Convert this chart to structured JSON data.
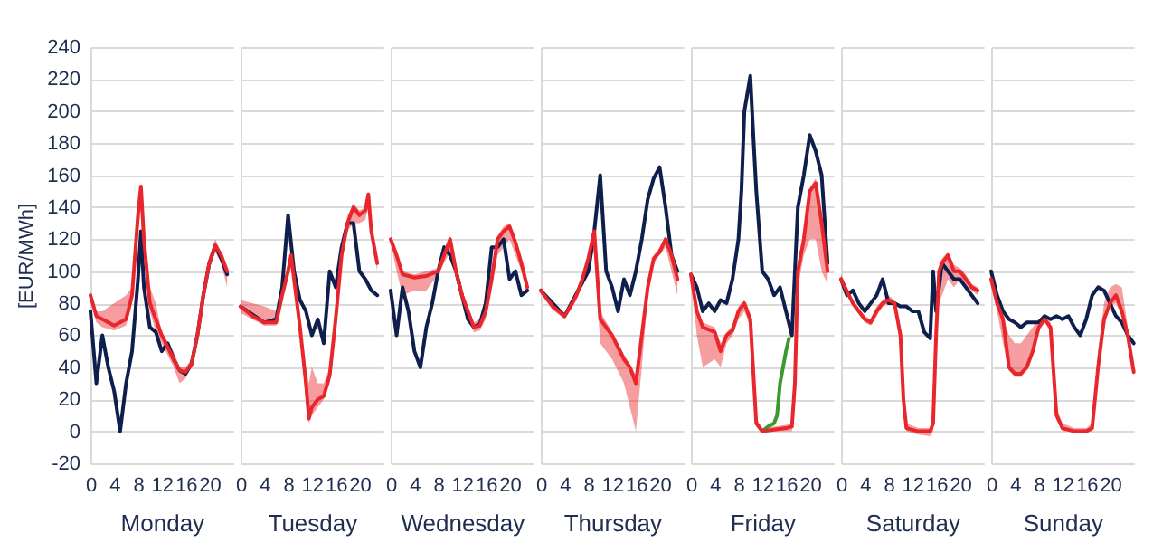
{
  "chart_data": [
    {
      "type": "line",
      "xlabel": "Monday",
      "ylabel": "[EUR/MWh]",
      "xlim": [
        0,
        24
      ],
      "xticks": [
        0,
        4,
        8,
        12,
        16,
        20
      ],
      "ylim": [
        -20,
        240
      ],
      "yticks": [
        -20,
        0,
        20,
        40,
        60,
        80,
        100,
        120,
        140,
        160,
        180,
        200,
        220,
        240
      ],
      "grid": "y",
      "series": [
        {
          "color": "#0e1f4d",
          "x": [
            0,
            1,
            2,
            3,
            4,
            5,
            6,
            7,
            8,
            8.5,
            9,
            10,
            11,
            12,
            13,
            14,
            15,
            16,
            17,
            18,
            19,
            20,
            21,
            22,
            23
          ],
          "values": [
            75,
            30,
            60,
            40,
            25,
            0,
            30,
            50,
            95,
            125,
            90,
            65,
            62,
            50,
            55,
            45,
            38,
            36,
            42,
            60,
            85,
            105,
            116,
            108,
            98
          ]
        },
        {
          "color": "#e8262b",
          "x": [
            0,
            1,
            2,
            4,
            6,
            7,
            8,
            8.5,
            9,
            10,
            11,
            12,
            14,
            15,
            16,
            17,
            18,
            19,
            20,
            21,
            22,
            23
          ],
          "values": [
            85,
            72,
            70,
            66,
            70,
            85,
            135,
            153,
            120,
            80,
            70,
            60,
            45,
            38,
            37,
            42,
            60,
            85,
            105,
            116,
            110,
            100
          ],
          "lower": [
            82,
            68,
            65,
            63,
            66,
            80,
            125,
            140,
            110,
            75,
            62,
            55,
            40,
            30,
            33,
            40,
            57,
            82,
            102,
            112,
            105,
            90
          ],
          "upper": [
            87,
            75,
            75,
            80,
            85,
            90,
            140,
            155,
            125,
            90,
            80,
            62,
            50,
            40,
            40,
            45,
            62,
            88,
            108,
            120,
            112,
            102
          ]
        }
      ]
    },
    {
      "type": "line",
      "xlabel": "Tuesday",
      "xlim": [
        0,
        24
      ],
      "xticks": [
        0,
        4,
        8,
        12,
        16,
        20
      ],
      "ylim": [
        -20,
        240
      ],
      "yticks": [
        -20,
        0,
        20,
        40,
        60,
        80,
        100,
        120,
        140,
        160,
        180,
        200,
        220,
        240
      ],
      "grid": "y",
      "tick_labels": "x",
      "series": [
        {
          "color": "#0e1f4d",
          "x": [
            0,
            4,
            6,
            7,
            8,
            9,
            10,
            11,
            12,
            13,
            14,
            15,
            16,
            17,
            18,
            19,
            20,
            21,
            22,
            23
          ],
          "values": [
            78,
            68,
            70,
            90,
            135,
            100,
            82,
            75,
            60,
            70,
            55,
            100,
            90,
            115,
            130,
            130,
            100,
            95,
            88,
            85
          ]
        },
        {
          "color": "#e8262b",
          "x": [
            0,
            2,
            4,
            6,
            7,
            8,
            8.5,
            9,
            10,
            11,
            11.5,
            12,
            13,
            14,
            15,
            16,
            17,
            18,
            19,
            20,
            21,
            21.5,
            22,
            23
          ],
          "values": [
            78,
            72,
            68,
            68,
            85,
            100,
            110,
            95,
            65,
            30,
            8,
            15,
            20,
            22,
            35,
            70,
            110,
            130,
            140,
            135,
            138,
            148,
            125,
            105
          ],
          "lower": [
            74,
            70,
            66,
            66,
            82,
            98,
            105,
            90,
            60,
            20,
            5,
            10,
            15,
            20,
            30,
            60,
            105,
            125,
            130,
            130,
            132,
            140,
            120,
            100
          ],
          "upper": [
            82,
            80,
            78,
            75,
            90,
            105,
            112,
            98,
            70,
            40,
            30,
            40,
            30,
            30,
            40,
            75,
            115,
            135,
            142,
            138,
            140,
            150,
            128,
            108
          ]
        }
      ]
    },
    {
      "type": "line",
      "xlabel": "Wednesday",
      "xlim": [
        0,
        24
      ],
      "xticks": [
        0,
        4,
        8,
        12,
        16,
        20
      ],
      "ylim": [
        -20,
        240
      ],
      "yticks": [
        -20,
        0,
        20,
        40,
        60,
        80,
        100,
        120,
        140,
        160,
        180,
        200,
        220,
        240
      ],
      "grid": "y",
      "tick_labels": "x",
      "series": [
        {
          "color": "#0e1f4d",
          "x": [
            0,
            1,
            2,
            3,
            4,
            5,
            6,
            7,
            8,
            9,
            10,
            11,
            12,
            13,
            14,
            15,
            16,
            17,
            18,
            19,
            20,
            21,
            22,
            23
          ],
          "values": [
            88,
            60,
            90,
            75,
            50,
            40,
            65,
            80,
            100,
            115,
            110,
            100,
            85,
            70,
            65,
            67,
            80,
            115,
            115,
            120,
            95,
            100,
            85,
            88
          ]
        },
        {
          "color": "#e8262b",
          "x": [
            0,
            1,
            2,
            4,
            6,
            8,
            9,
            10,
            11,
            12,
            13,
            14,
            15,
            16,
            17,
            18,
            19,
            20,
            21,
            22,
            23
          ],
          "values": [
            120,
            110,
            98,
            96,
            97,
            100,
            110,
            120,
            100,
            85,
            75,
            65,
            66,
            75,
            95,
            120,
            125,
            128,
            118,
            105,
            90
          ],
          "lower": [
            118,
            100,
            85,
            88,
            88,
            98,
            105,
            112,
            95,
            80,
            70,
            62,
            63,
            70,
            90,
            110,
            115,
            120,
            110,
            100,
            85
          ],
          "upper": [
            122,
            112,
            100,
            98,
            100,
            102,
            112,
            122,
            102,
            88,
            78,
            68,
            70,
            85,
            100,
            122,
            128,
            130,
            120,
            108,
            92
          ]
        }
      ]
    },
    {
      "type": "line",
      "xlabel": "Thursday",
      "xlim": [
        0,
        24
      ],
      "xticks": [
        0,
        4,
        8,
        12,
        16,
        20
      ],
      "ylim": [
        -20,
        240
      ],
      "yticks": [
        -20,
        0,
        20,
        40,
        60,
        80,
        100,
        120,
        140,
        160,
        180,
        200,
        220,
        240
      ],
      "grid": "y",
      "tick_labels": "x",
      "series": [
        {
          "color": "#0e1f4d",
          "x": [
            0,
            4,
            8,
            9,
            10,
            11,
            12,
            13,
            14,
            15,
            16,
            17,
            18,
            19,
            20,
            21,
            22,
            23
          ],
          "values": [
            88,
            72,
            100,
            125,
            160,
            100,
            90,
            75,
            95,
            85,
            100,
            120,
            145,
            158,
            165,
            140,
            110,
            100
          ]
        },
        {
          "color": "#e8262b",
          "x": [
            0,
            2,
            4,
            5,
            6,
            7,
            8,
            9,
            10,
            12,
            14,
            15,
            16,
            17,
            18,
            19,
            20,
            21,
            22,
            23
          ],
          "values": [
            88,
            78,
            72,
            78,
            85,
            95,
            108,
            125,
            70,
            60,
            45,
            40,
            30,
            60,
            90,
            108,
            112,
            120,
            110,
            95
          ],
          "lower": [
            86,
            76,
            70,
            76,
            82,
            92,
            105,
            112,
            55,
            45,
            30,
            15,
            0,
            40,
            85,
            105,
            110,
            115,
            100,
            85
          ],
          "upper": [
            90,
            80,
            74,
            80,
            88,
            98,
            110,
            126,
            75,
            62,
            48,
            42,
            35,
            65,
            92,
            110,
            115,
            122,
            112,
            100
          ]
        }
      ]
    },
    {
      "type": "line",
      "xlabel": "Friday",
      "xlim": [
        0,
        24
      ],
      "xticks": [
        0,
        4,
        8,
        12,
        16,
        20
      ],
      "ylim": [
        -20,
        240
      ],
      "yticks": [
        -20,
        0,
        20,
        40,
        60,
        80,
        100,
        120,
        140,
        160,
        180,
        200,
        220,
        240
      ],
      "grid": "y",
      "tick_labels": "x",
      "series": [
        {
          "color": "#0e1f4d",
          "x": [
            0,
            1,
            2,
            3,
            4,
            5,
            6,
            7,
            8,
            8.5,
            9,
            10,
            10.5,
            11,
            12,
            13,
            14,
            15,
            16,
            17,
            18,
            19,
            20,
            21,
            22,
            23
          ],
          "values": [
            98,
            90,
            75,
            80,
            75,
            82,
            80,
            95,
            120,
            150,
            200,
            222,
            185,
            150,
            100,
            95,
            85,
            90,
            75,
            60,
            140,
            160,
            185,
            175,
            160,
            105
          ]
        },
        {
          "color": "#3a9a2e",
          "x": [
            12,
            13,
            14,
            14.5,
            15,
            16,
            16.5
          ],
          "values": [
            0,
            3,
            5,
            10,
            30,
            50,
            58
          ]
        },
        {
          "color": "#e8262b",
          "x": [
            0,
            1,
            2,
            4,
            5,
            6,
            7,
            8,
            9,
            10,
            11,
            12,
            14,
            16,
            17,
            17.5,
            18,
            19,
            20,
            21,
            22,
            23
          ],
          "values": [
            98,
            75,
            65,
            62,
            50,
            60,
            63,
            75,
            80,
            70,
            5,
            0,
            1,
            2,
            3,
            30,
            100,
            120,
            150,
            155,
            130,
            100
          ],
          "lower": [
            95,
            60,
            40,
            45,
            40,
            55,
            60,
            70,
            75,
            65,
            3,
            0,
            0,
            0,
            0,
            20,
            90,
            110,
            120,
            120,
            100,
            92
          ],
          "upper": [
            100,
            78,
            68,
            65,
            55,
            62,
            66,
            78,
            82,
            72,
            8,
            2,
            3,
            4,
            5,
            35,
            105,
            125,
            152,
            158,
            135,
            105
          ]
        }
      ]
    },
    {
      "type": "line",
      "xlabel": "Saturday",
      "xlim": [
        0,
        24
      ],
      "xticks": [
        0,
        4,
        8,
        12,
        16,
        20
      ],
      "ylim": [
        -20,
        240
      ],
      "yticks": [
        -20,
        0,
        20,
        40,
        60,
        80,
        100,
        120,
        140,
        160,
        180,
        200,
        220,
        240
      ],
      "grid": "y",
      "tick_labels": "x",
      "series": [
        {
          "color": "#0e1f4d",
          "x": [
            0,
            1,
            2,
            3,
            4,
            5,
            6,
            7,
            8,
            9,
            10,
            11,
            12,
            13,
            14,
            15,
            15.5,
            16,
            17,
            18,
            19,
            20,
            21,
            22,
            23
          ],
          "values": [
            95,
            85,
            88,
            80,
            75,
            80,
            85,
            95,
            80,
            80,
            78,
            78,
            75,
            75,
            62,
            58,
            100,
            75,
            105,
            100,
            95,
            95,
            90,
            85,
            80
          ]
        },
        {
          "color": "#e8262b",
          "x": [
            0,
            2,
            4,
            5,
            6,
            7,
            8,
            9,
            10,
            10.5,
            11,
            13,
            15,
            15.5,
            16,
            16.5,
            17,
            18,
            19,
            20,
            21,
            22,
            23
          ],
          "values": [
            95,
            80,
            70,
            68,
            75,
            80,
            82,
            80,
            60,
            20,
            2,
            0,
            0,
            5,
            60,
            100,
            105,
            110,
            100,
            100,
            95,
            90,
            88
          ],
          "lower": [
            92,
            78,
            68,
            66,
            72,
            78,
            80,
            78,
            55,
            15,
            0,
            -2,
            -3,
            0,
            50,
            80,
            85,
            95,
            90,
            95,
            90,
            88,
            85
          ],
          "upper": [
            98,
            82,
            72,
            70,
            78,
            82,
            85,
            82,
            62,
            25,
            5,
            2,
            2,
            10,
            65,
            105,
            108,
            112,
            104,
            102,
            98,
            92,
            90
          ]
        }
      ]
    },
    {
      "type": "line",
      "xlabel": "Sunday",
      "xlim": [
        0,
        24
      ],
      "xticks": [
        0,
        4,
        8,
        12,
        16,
        20
      ],
      "ylim": [
        -20,
        240
      ],
      "yticks": [
        -20,
        0,
        20,
        40,
        60,
        80,
        100,
        120,
        140,
        160,
        180,
        200,
        220,
        240
      ],
      "grid": "y",
      "tick_labels": "x",
      "series": [
        {
          "color": "#0e1f4d",
          "x": [
            0,
            1,
            2,
            3,
            4,
            5,
            6,
            7,
            8,
            9,
            10,
            11,
            12,
            13,
            14,
            15,
            16,
            17,
            18,
            19,
            20,
            21,
            22,
            23,
            24
          ],
          "values": [
            100,
            85,
            75,
            70,
            68,
            65,
            68,
            68,
            68,
            72,
            70,
            72,
            70,
            72,
            65,
            60,
            70,
            85,
            90,
            88,
            80,
            72,
            68,
            60,
            55
          ]
        },
        {
          "color": "#e8262b",
          "x": [
            0,
            1,
            2,
            3,
            4,
            5,
            6,
            7,
            8,
            9,
            10,
            11,
            12,
            14,
            16,
            17,
            18,
            19,
            20,
            21,
            22,
            23,
            24
          ],
          "values": [
            95,
            80,
            70,
            40,
            36,
            36,
            40,
            50,
            65,
            70,
            65,
            10,
            2,
            0,
            0,
            2,
            40,
            70,
            80,
            85,
            75,
            60,
            37
          ],
          "lower": [
            92,
            75,
            55,
            38,
            34,
            34,
            38,
            48,
            62,
            68,
            62,
            8,
            0,
            0,
            0,
            0,
            35,
            65,
            78,
            80,
            72,
            55,
            35
          ],
          "upper": [
            98,
            85,
            72,
            60,
            55,
            55,
            60,
            65,
            70,
            72,
            68,
            15,
            5,
            2,
            2,
            5,
            50,
            80,
            90,
            92,
            90,
            65,
            40
          ]
        }
      ]
    }
  ]
}
